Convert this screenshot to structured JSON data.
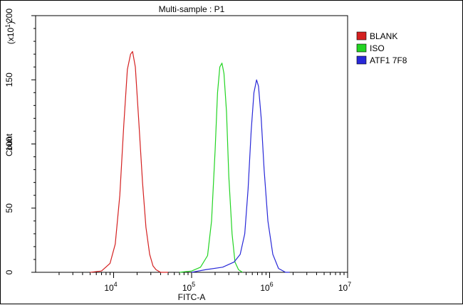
{
  "chart_data": {
    "type": "line",
    "title": "Multi-sample : P1",
    "xlabel": "FITC-A",
    "ylabel": "Count",
    "y_multiplier_label": "(x10",
    "y_multiplier_exp": "1",
    "x_scale": "log",
    "xlim": [
      1000,
      10000000
    ],
    "ylim": [
      0,
      200
    ],
    "x_ticks": [
      {
        "value": 10000,
        "base": "10",
        "exp": "4"
      },
      {
        "value": 100000,
        "base": "10",
        "exp": "5"
      },
      {
        "value": 1000000,
        "base": "10",
        "exp": "6"
      },
      {
        "value": 10000000,
        "base": "10",
        "exp": "7"
      }
    ],
    "y_ticks": [
      0,
      50,
      100,
      150,
      200
    ],
    "legend_position": "right",
    "series": [
      {
        "name": "BLANK",
        "color": "#d42020",
        "x": [
          5000,
          7000,
          9000,
          10500,
          12000,
          13500,
          15000,
          16500,
          17500,
          19000,
          21000,
          23500,
          26000,
          29000,
          32000,
          35000,
          40000,
          50000
        ],
        "y": [
          0,
          1,
          7,
          22,
          60,
          115,
          158,
          170,
          172,
          160,
          118,
          70,
          35,
          14,
          5,
          2,
          0,
          0
        ]
      },
      {
        "name": "ISO",
        "color": "#22d422",
        "x": [
          70000,
          100000,
          130000,
          160000,
          180000,
          200000,
          215000,
          230000,
          245000,
          260000,
          280000,
          300000,
          330000,
          360000,
          400000,
          450000
        ],
        "y": [
          0,
          1,
          4,
          13,
          40,
          95,
          140,
          160,
          163,
          155,
          125,
          75,
          30,
          8,
          2,
          0
        ]
      },
      {
        "name": "ATF1 7F8",
        "color": "#2828d8",
        "x": [
          100000,
          150000,
          250000,
          350000,
          420000,
          480000,
          530000,
          580000,
          630000,
          680000,
          720000,
          780000,
          850000,
          950000,
          1100000,
          1300000,
          1600000,
          1800000
        ],
        "y": [
          0,
          2,
          4,
          8,
          14,
          30,
          65,
          110,
          140,
          150,
          145,
          120,
          80,
          40,
          14,
          3,
          0,
          0
        ]
      }
    ]
  }
}
